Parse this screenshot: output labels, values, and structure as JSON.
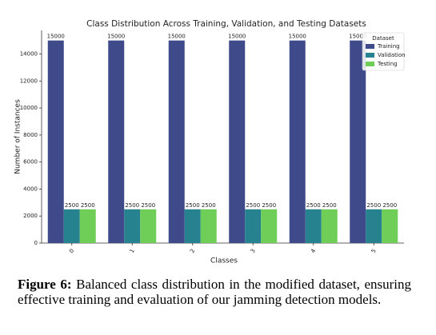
{
  "chart_data": {
    "type": "bar",
    "title": "Class Distribution Across Training, Validation, and Testing Datasets",
    "x_label": "Classes",
    "y_label": "Number of Instances",
    "categories": [
      "0",
      "1",
      "2",
      "3",
      "4",
      "5"
    ],
    "series": [
      {
        "name": "Training",
        "color": "#3e4a89",
        "values": [
          15000,
          15000,
          15000,
          15000,
          15000,
          15000
        ]
      },
      {
        "name": "Validation",
        "color": "#26828e",
        "values": [
          2500,
          2500,
          2500,
          2500,
          2500,
          2500
        ]
      },
      {
        "name": "Testing",
        "color": "#6ece58",
        "values": [
          2500,
          2500,
          2500,
          2500,
          2500,
          2500
        ]
      }
    ],
    "ylim": [
      0,
      15750
    ],
    "yticks": [
      0,
      2000,
      4000,
      6000,
      8000,
      10000,
      12000,
      14000
    ],
    "legend_title": "Dataset",
    "legend": "upper right",
    "grid": false
  },
  "caption": {
    "label": "Figure 6:",
    "text": "Balanced class distribution in the modified dataset, ensuring effective training and evaluation of our jamming detection models."
  }
}
